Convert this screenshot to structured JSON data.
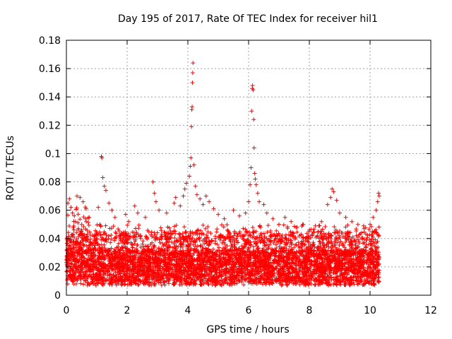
{
  "chart_data": {
    "type": "scatter",
    "title": "Day 195 of 2017, Rate Of TEC Index for receiver hil1",
    "xlabel": "GPS time / hours",
    "ylabel": "ROTI / TECUs",
    "xlim": [
      0,
      12
    ],
    "ylim": [
      0,
      0.18
    ],
    "xticks": [
      0,
      2,
      4,
      6,
      8,
      10,
      12
    ],
    "xtick_labels": [
      "0",
      "2",
      "4",
      "6",
      "8",
      "10",
      "12"
    ],
    "yticks": [
      0,
      0.02,
      0.04,
      0.06,
      0.08,
      0.1,
      0.12,
      0.14,
      0.16,
      0.18
    ],
    "ytick_labels": [
      "0",
      "0.02",
      "0.04",
      "0.06",
      "0.08",
      "0.1",
      "0.12",
      "0.14",
      "0.16",
      "0.18"
    ],
    "grid": true,
    "marker": "+",
    "color": "#ff0000",
    "series": [
      {
        "name": "hil1",
        "points": [
          [
            0.05,
            0.065
          ],
          [
            0.1,
            0.068
          ],
          [
            0.15,
            0.062
          ],
          [
            0.2,
            0.058
          ],
          [
            0.3,
            0.052
          ],
          [
            0.35,
            0.07
          ],
          [
            0.45,
            0.069
          ],
          [
            0.55,
            0.066
          ],
          [
            0.65,
            0.061
          ],
          [
            0.75,
            0.055
          ],
          [
            1.05,
            0.062
          ],
          [
            1.15,
            0.098
          ],
          [
            1.17,
            0.097
          ],
          [
            1.2,
            0.083
          ],
          [
            1.25,
            0.077
          ],
          [
            1.3,
            0.074
          ],
          [
            1.4,
            0.065
          ],
          [
            1.5,
            0.06
          ],
          [
            1.6,
            0.055
          ],
          [
            1.95,
            0.057
          ],
          [
            2.05,
            0.052
          ],
          [
            2.25,
            0.063
          ],
          [
            2.35,
            0.058
          ],
          [
            2.6,
            0.055
          ],
          [
            2.85,
            0.08
          ],
          [
            2.9,
            0.072
          ],
          [
            2.95,
            0.066
          ],
          [
            3.05,
            0.06
          ],
          [
            3.3,
            0.058
          ],
          [
            3.55,
            0.065
          ],
          [
            3.6,
            0.069
          ],
          [
            3.75,
            0.063
          ],
          [
            3.85,
            0.07
          ],
          [
            3.9,
            0.075
          ],
          [
            3.95,
            0.079
          ],
          [
            4.05,
            0.084
          ],
          [
            4.08,
            0.091
          ],
          [
            4.1,
            0.097
          ],
          [
            4.12,
            0.119
          ],
          [
            4.13,
            0.131
          ],
          [
            4.14,
            0.133
          ],
          [
            4.15,
            0.15
          ],
          [
            4.16,
            0.157
          ],
          [
            4.17,
            0.164
          ],
          [
            4.2,
            0.092
          ],
          [
            4.25,
            0.077
          ],
          [
            4.3,
            0.071
          ],
          [
            4.4,
            0.068
          ],
          [
            4.5,
            0.064
          ],
          [
            4.6,
            0.07
          ],
          [
            4.7,
            0.066
          ],
          [
            4.85,
            0.061
          ],
          [
            5.0,
            0.057
          ],
          [
            5.2,
            0.054
          ],
          [
            5.5,
            0.06
          ],
          [
            5.7,
            0.056
          ],
          [
            5.9,
            0.058
          ],
          [
            6.0,
            0.066
          ],
          [
            6.05,
            0.078
          ],
          [
            6.08,
            0.09
          ],
          [
            6.1,
            0.13
          ],
          [
            6.12,
            0.146
          ],
          [
            6.13,
            0.148
          ],
          [
            6.15,
            0.145
          ],
          [
            6.17,
            0.124
          ],
          [
            6.18,
            0.104
          ],
          [
            6.2,
            0.086
          ],
          [
            6.22,
            0.082
          ],
          [
            6.25,
            0.078
          ],
          [
            6.3,
            0.072
          ],
          [
            6.35,
            0.066
          ],
          [
            6.5,
            0.064
          ],
          [
            6.6,
            0.058
          ],
          [
            6.8,
            0.054
          ],
          [
            7.0,
            0.05
          ],
          [
            7.2,
            0.055
          ],
          [
            7.4,
            0.052
          ],
          [
            7.6,
            0.048
          ],
          [
            7.8,
            0.05
          ],
          [
            8.0,
            0.046
          ],
          [
            8.2,
            0.049
          ],
          [
            8.4,
            0.052
          ],
          [
            8.6,
            0.064
          ],
          [
            8.7,
            0.069
          ],
          [
            8.75,
            0.075
          ],
          [
            8.8,
            0.073
          ],
          [
            8.9,
            0.067
          ],
          [
            9.0,
            0.058
          ],
          [
            9.2,
            0.055
          ],
          [
            9.4,
            0.052
          ],
          [
            9.6,
            0.05
          ],
          [
            9.8,
            0.047
          ],
          [
            10.0,
            0.05
          ],
          [
            10.1,
            0.055
          ],
          [
            10.2,
            0.06
          ],
          [
            10.25,
            0.066
          ],
          [
            10.28,
            0.072
          ],
          [
            10.3,
            0.07
          ]
        ],
        "band_note": "dense cloud of points between 0.005 and 0.05 TECU over 0 to 10.3 hours"
      }
    ]
  }
}
